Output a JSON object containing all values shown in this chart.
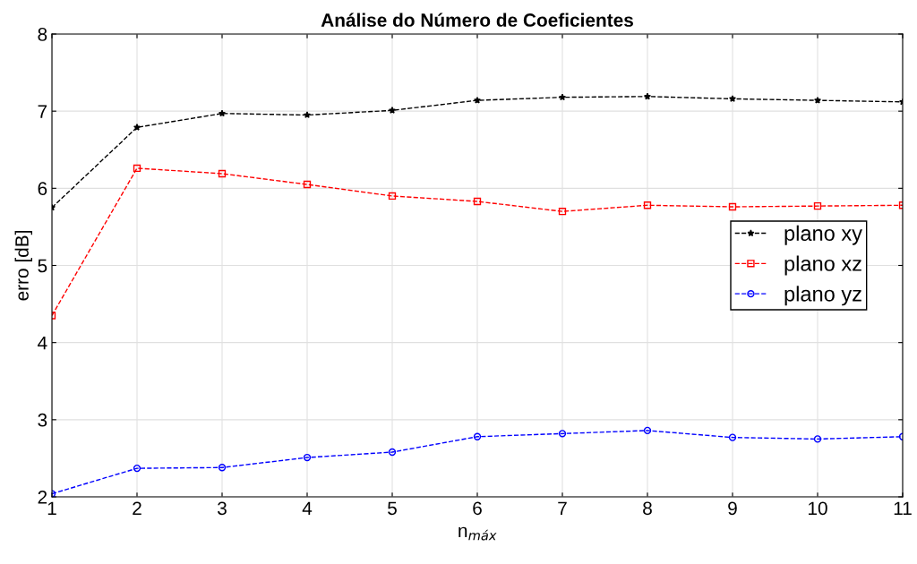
{
  "chart_data": {
    "type": "line",
    "title": "Análise do Número de Coeficientes",
    "xlabel": "n$_{máx}$",
    "ylabel": "erro [dB]",
    "x": [
      1,
      2,
      3,
      4,
      5,
      6,
      7,
      8,
      9,
      10,
      11
    ],
    "xlim": [
      1,
      11
    ],
    "xticks": [
      1,
      2,
      3,
      4,
      5,
      6,
      7,
      8,
      9,
      10,
      11
    ],
    "ylim": [
      2,
      8
    ],
    "yticks": [
      2,
      3,
      4,
      5,
      6,
      7,
      8
    ],
    "grid": true,
    "legend": "right",
    "line_style": "dashed",
    "series": [
      {
        "name": "plano xy",
        "color": "#000000",
        "marker": "star",
        "values": [
          5.75,
          6.79,
          6.97,
          6.95,
          7.01,
          7.14,
          7.18,
          7.19,
          7.16,
          7.14,
          7.12
        ]
      },
      {
        "name": "plano xz",
        "color": "#ff0000",
        "marker": "square",
        "values": [
          4.35,
          6.26,
          6.19,
          6.05,
          5.9,
          5.83,
          5.7,
          5.78,
          5.76,
          5.77,
          5.78
        ]
      },
      {
        "name": "plano yz",
        "color": "#0000ff",
        "marker": "circle",
        "values": [
          2.04,
          2.37,
          2.38,
          2.51,
          2.58,
          2.78,
          2.82,
          2.86,
          2.77,
          2.75,
          2.78
        ]
      }
    ]
  }
}
